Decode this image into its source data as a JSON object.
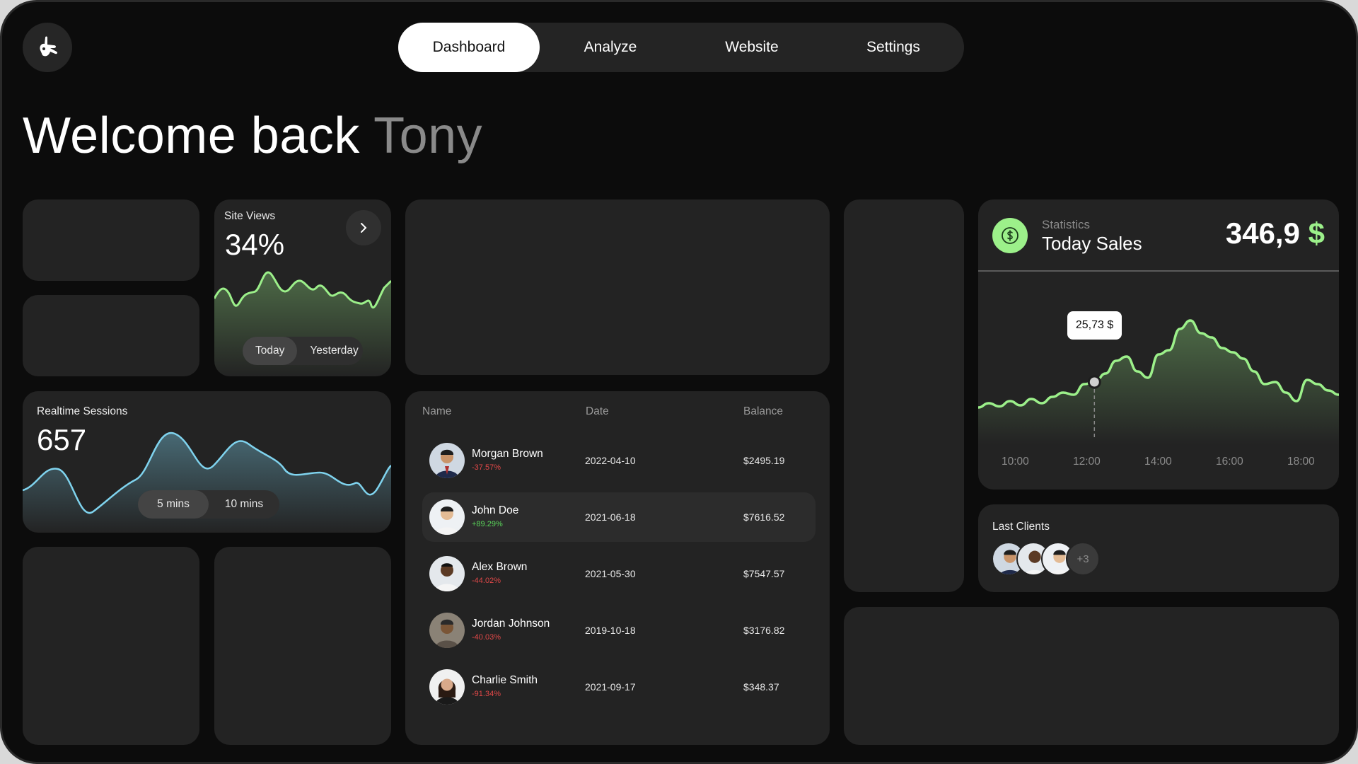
{
  "nav": {
    "tabs": [
      {
        "label": "Dashboard",
        "active": true
      },
      {
        "label": "Analyze",
        "active": false
      },
      {
        "label": "Website",
        "active": false
      },
      {
        "label": "Settings",
        "active": false
      }
    ]
  },
  "welcome": {
    "prefix": "Welcome back",
    "name": "Tony"
  },
  "site_views": {
    "title": "Site Views",
    "value": "34%",
    "toggle": [
      "Today",
      "Yesterday"
    ],
    "accent": "#9cf08a"
  },
  "realtime": {
    "title": "Realtime Sessions",
    "value": "657",
    "toggle": [
      "5 mins",
      "10 mins"
    ],
    "accent": "#7fd3ee"
  },
  "table": {
    "headers": {
      "name": "Name",
      "date": "Date",
      "balance": "Balance"
    },
    "rows": [
      {
        "name": "Morgan Brown",
        "change": "-37.57%",
        "trend": "neg",
        "date": "2022-04-10",
        "balance": "$2495.19",
        "active": false
      },
      {
        "name": "John Doe",
        "change": "+89.29%",
        "trend": "pos",
        "date": "2021-06-18",
        "balance": "$7616.52",
        "active": true
      },
      {
        "name": "Alex Brown",
        "change": "-44.02%",
        "trend": "neg",
        "date": "2021-05-30",
        "balance": "$7547.57",
        "active": false
      },
      {
        "name": "Jordan Johnson",
        "change": "-40.03%",
        "trend": "neg",
        "date": "2019-10-18",
        "balance": "$3176.82",
        "active": false
      },
      {
        "name": "Charlie Smith",
        "change": "-91.34%",
        "trend": "neg",
        "date": "2021-09-17",
        "balance": "$348.37",
        "active": false
      }
    ]
  },
  "sales": {
    "label_small": "Statistics",
    "label": "Today Sales",
    "value": "346,9",
    "currency": "$",
    "accent": "#9cf08a",
    "icon": "dollar-icon"
  },
  "chart_data": {
    "type": "line",
    "x_ticks": [
      "10:00",
      "12:00",
      "14:00",
      "16:00",
      "18:00"
    ],
    "tooltip": {
      "label": "25,73 $",
      "x": "12:24"
    },
    "series": [
      {
        "values": [
          0.08,
          0.12,
          0.09,
          0.14,
          0.1,
          0.16,
          0.12,
          0.18,
          0.22,
          0.2,
          0.3,
          0.32,
          0.4,
          0.52,
          0.56,
          0.42,
          0.36,
          0.58,
          0.62,
          0.82,
          0.9,
          0.78,
          0.74,
          0.64,
          0.6,
          0.54,
          0.42,
          0.3,
          0.32,
          0.22,
          0.14,
          0.34,
          0.3,
          0.24,
          0.2
        ]
      }
    ]
  },
  "clients": {
    "title": "Last Clients",
    "more": "+3"
  }
}
